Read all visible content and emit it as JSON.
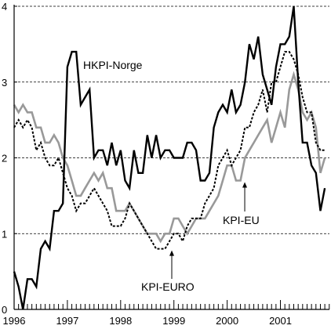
{
  "chart_data": {
    "type": "line",
    "title": "",
    "xlabel": "",
    "ylabel": "",
    "ylim": [
      0,
      4
    ],
    "xlim": [
      1996.0,
      2001.9
    ],
    "x_ticks": [
      "1996",
      "1997",
      "1998",
      "1999",
      "2000",
      "2001"
    ],
    "y_ticks": [
      "0",
      "1",
      "2",
      "3",
      "4"
    ],
    "grid": {
      "horizontal_dashed": true
    },
    "frequency": "monthly",
    "series": [
      {
        "name": "HKPI-Norge",
        "color": "#000000",
        "style": "solid",
        "start": 1996.0,
        "values": [
          0.5,
          0.3,
          0.0,
          0.4,
          0.4,
          0.3,
          0.8,
          0.9,
          0.8,
          1.3,
          1.3,
          1.4,
          3.2,
          3.4,
          3.4,
          2.7,
          2.8,
          2.9,
          2.0,
          2.1,
          2.1,
          1.9,
          2.2,
          1.9,
          2.1,
          1.7,
          1.6,
          2.1,
          1.8,
          1.8,
          2.3,
          2.0,
          2.3,
          2.0,
          2.1,
          2.1,
          2.0,
          2.0,
          2.0,
          2.2,
          2.2,
          2.1,
          1.7,
          1.7,
          1.8,
          2.4,
          2.6,
          2.7,
          2.6,
          2.9,
          2.6,
          2.7,
          3.0,
          3.5,
          3.3,
          3.6,
          3.1,
          2.9,
          2.7,
          3.2,
          3.5,
          3.5,
          3.6,
          4.0,
          3.0,
          2.2,
          2.2,
          1.9,
          1.8,
          1.3,
          1.6
        ]
      },
      {
        "name": "KPI-EU",
        "color": "#999999",
        "style": "solid",
        "start": 1996.0,
        "values": [
          2.7,
          2.6,
          2.7,
          2.6,
          2.6,
          2.4,
          2.4,
          2.2,
          2.2,
          2.3,
          2.2,
          2.0,
          1.9,
          1.7,
          1.5,
          1.5,
          1.6,
          1.7,
          1.8,
          1.7,
          1.8,
          1.6,
          1.6,
          1.3,
          1.3,
          1.3,
          1.4,
          1.3,
          1.2,
          1.1,
          1.0,
          1.0,
          1.0,
          0.9,
          1.0,
          1.0,
          1.2,
          1.2,
          1.1,
          1.0,
          1.1,
          1.2,
          1.2,
          1.2,
          1.3,
          1.4,
          1.5,
          1.7,
          1.9,
          1.9,
          1.7,
          1.7,
          2.0,
          2.1,
          2.2,
          2.3,
          2.4,
          2.5,
          2.2,
          2.4,
          2.6,
          2.4,
          2.9,
          3.1,
          2.9,
          2.6,
          2.5,
          2.6,
          2.4,
          1.8,
          2.0
        ]
      },
      {
        "name": "KPI-EURO",
        "color": "#000000",
        "style": "dotted",
        "start": 1996.0,
        "values": [
          2.4,
          2.5,
          2.4,
          2.5,
          2.4,
          2.1,
          2.2,
          2.0,
          1.9,
          1.9,
          2.0,
          1.8,
          1.6,
          1.5,
          1.3,
          1.4,
          1.4,
          1.5,
          1.6,
          1.5,
          1.4,
          1.3,
          1.1,
          1.1,
          1.1,
          1.2,
          1.4,
          1.3,
          1.2,
          1.1,
          1.0,
          0.9,
          0.8,
          0.8,
          0.8,
          0.9,
          1.0,
          1.0,
          0.9,
          1.1,
          1.2,
          1.2,
          1.2,
          1.4,
          1.5,
          1.6,
          1.9,
          2.0,
          2.1,
          1.9,
          2.0,
          2.1,
          2.4,
          2.4,
          2.6,
          2.7,
          2.9,
          2.6,
          3.0,
          3.0,
          3.2,
          3.4,
          3.4,
          3.3,
          3.1,
          2.8,
          2.6,
          2.6,
          2.2,
          2.1,
          2.1
        ]
      }
    ],
    "annotations": [
      {
        "text": "HKPI-Norge",
        "series": "HKPI-Norge"
      },
      {
        "text": "KPI-EU",
        "series": "KPI-EU",
        "arrow_x": 2000.33,
        "arrow_y": 1.7
      },
      {
        "text": "KPI-EURO",
        "series": "KPI-EURO",
        "arrow_x": 1998.96,
        "arrow_y": 0.8
      }
    ]
  }
}
